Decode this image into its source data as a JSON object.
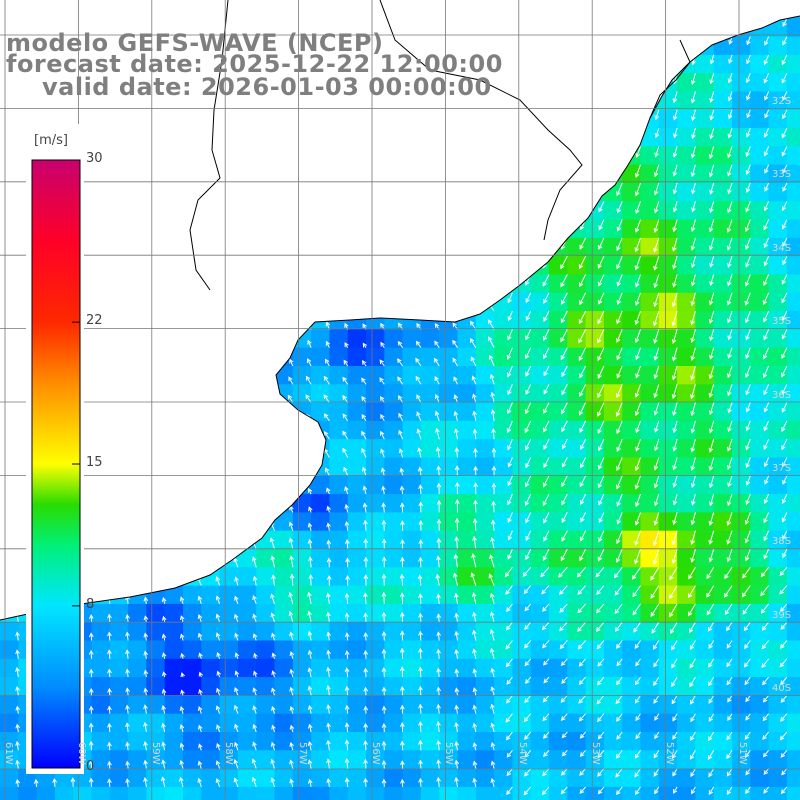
{
  "title": {
    "line1": "modelo GEFS-WAVE (NCEP)",
    "line2": "forecast date: 2025-12-22 12:00:00",
    "line3": "valid date: 2026-01-03 00:00:00"
  },
  "colorbar": {
    "unit": "[m/s]",
    "ticks": [
      "0",
      "8",
      "15",
      "22",
      "30"
    ],
    "tick_values": [
      0,
      8,
      15,
      22,
      30
    ],
    "min": 0,
    "max": 30,
    "colors": [
      "#0000ff",
      "#00ccff",
      "#00ff80",
      "#20e000",
      "#ffff00",
      "#ff8000",
      "#ff0000",
      "#cc0066"
    ]
  },
  "grid": {
    "lat_labels": [
      "32S",
      "33S",
      "34S",
      "35S",
      "36S",
      "37S",
      "38S",
      "39S",
      "40S"
    ],
    "lon_labels": [
      "61W",
      "60W",
      "59W",
      "58W",
      "57W",
      "56W",
      "55W",
      "54W",
      "53W",
      "52W",
      "51W"
    ]
  },
  "colors": {
    "coast": "#000000",
    "grid": "#777777",
    "land": "#ffffff",
    "title": "#7f7f7f",
    "arrow": "#ffffff"
  }
}
